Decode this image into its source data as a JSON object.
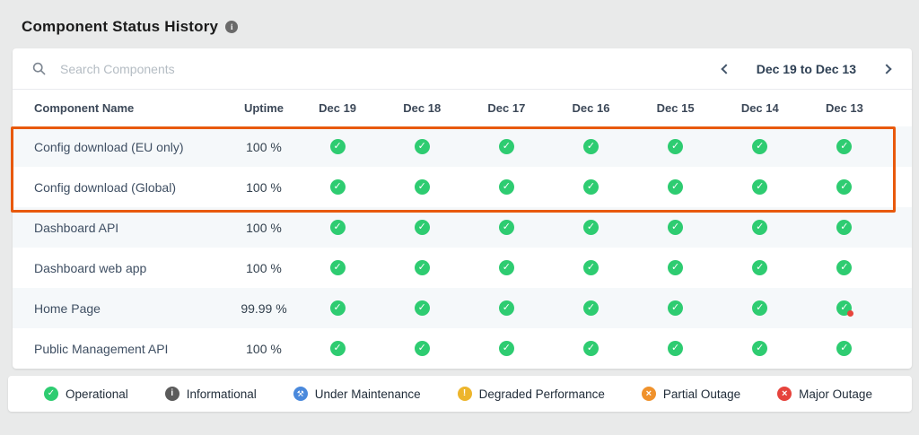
{
  "page": {
    "title": "Component Status History"
  },
  "toolbar": {
    "search_placeholder": "Search Components",
    "date_range_label": "Dec 19 to Dec 13"
  },
  "icons": {
    "title_info": "i",
    "search": "magnifier",
    "prev": "chevron-left",
    "next": "chevron-right",
    "operational": "check",
    "informational": "info",
    "under_maintenance": "tools",
    "degraded_performance": "exclamation",
    "partial_outage": "cross",
    "major_outage": "cross"
  },
  "table": {
    "columns": [
      "Component Name",
      "Uptime",
      "Dec 19",
      "Dec 18",
      "Dec 17",
      "Dec 16",
      "Dec 15",
      "Dec 14",
      "Dec 13"
    ],
    "rows": [
      {
        "name": "Config download (EU only)",
        "uptime": "100 %",
        "statuses": [
          "operational",
          "operational",
          "operational",
          "operational",
          "operational",
          "operational",
          "operational"
        ]
      },
      {
        "name": "Config download (Global)",
        "uptime": "100 %",
        "statuses": [
          "operational",
          "operational",
          "operational",
          "operational",
          "operational",
          "operational",
          "operational"
        ]
      },
      {
        "name": "Dashboard API",
        "uptime": "100 %",
        "statuses": [
          "operational",
          "operational",
          "operational",
          "operational",
          "operational",
          "operational",
          "operational"
        ]
      },
      {
        "name": "Dashboard web app",
        "uptime": "100 %",
        "statuses": [
          "operational",
          "operational",
          "operational",
          "operational",
          "operational",
          "operational",
          "operational"
        ]
      },
      {
        "name": "Home Page",
        "uptime": "99.99 %",
        "statuses": [
          "operational",
          "operational",
          "operational",
          "operational",
          "operational",
          "operational",
          "operational-incident"
        ]
      },
      {
        "name": "Public Management API",
        "uptime": "100 %",
        "statuses": [
          "operational",
          "operational",
          "operational",
          "operational",
          "operational",
          "operational",
          "operational"
        ]
      }
    ],
    "highlighted_rows": [
      0,
      1
    ]
  },
  "legend": {
    "items": [
      {
        "label": "Operational",
        "icon": "check",
        "color": "#2ecc71"
      },
      {
        "label": "Informational",
        "icon": "info",
        "color": "#5b5b5b"
      },
      {
        "label": "Under Maintenance",
        "icon": "tools",
        "color": "#4a89dc"
      },
      {
        "label": "Degraded Performance",
        "icon": "exclamation",
        "color": "#edb52c"
      },
      {
        "label": "Partial Outage",
        "icon": "cross",
        "color": "#f0922c"
      },
      {
        "label": "Major Outage",
        "icon": "cross",
        "color": "#e6433c"
      }
    ]
  },
  "colors": {
    "operational": "#2ecc71",
    "incident_dot": "#e8453c",
    "highlight_box": "#e8590c",
    "row_alt": "#f5f8fa"
  }
}
